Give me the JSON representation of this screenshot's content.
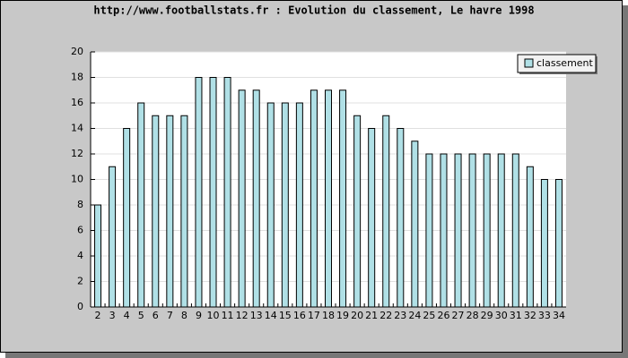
{
  "chart_data": {
    "type": "bar",
    "title": "http://www.footballstats.fr : Evolution du classement, Le havre 1998",
    "categories": [
      "2",
      "3",
      "4",
      "5",
      "6",
      "7",
      "8",
      "9",
      "10",
      "11",
      "12",
      "13",
      "14",
      "15",
      "16",
      "17",
      "18",
      "19",
      "20",
      "21",
      "22",
      "23",
      "24",
      "25",
      "26",
      "27",
      "28",
      "29",
      "30",
      "31",
      "32",
      "33",
      "34"
    ],
    "series": [
      {
        "name": "classement",
        "color": "#b0e0e6",
        "values": [
          8,
          11,
          14,
          16,
          15,
          15,
          15,
          18,
          18,
          18,
          17,
          17,
          16,
          16,
          16,
          17,
          17,
          17,
          15,
          14,
          15,
          14,
          13,
          12,
          12,
          12,
          12,
          12,
          12,
          12,
          11,
          10,
          10
        ]
      }
    ],
    "ylim": [
      0,
      20
    ],
    "yticks": [
      0,
      2,
      4,
      6,
      8,
      10,
      12,
      14,
      16,
      18,
      20
    ],
    "grid": true,
    "legend": "top-right"
  }
}
